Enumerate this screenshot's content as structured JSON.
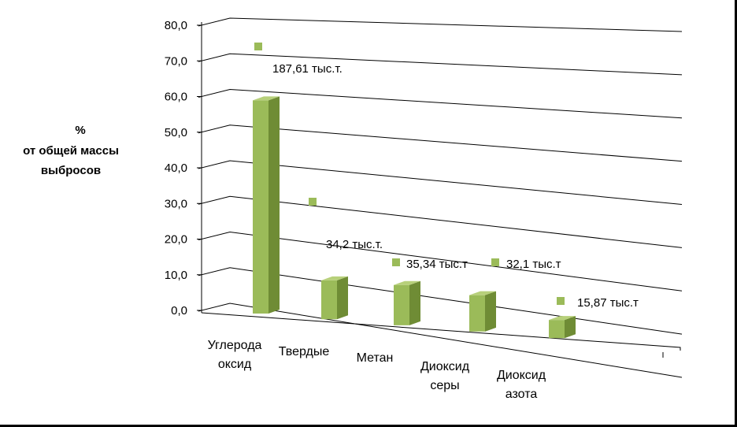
{
  "chart_data": {
    "type": "bar",
    "title": "",
    "ylabel_lines": [
      "%",
      "от общей массы",
      "выбросов"
    ],
    "xlabel": "",
    "ylim": [
      0,
      80
    ],
    "yticks": [
      "0,0",
      "10,0",
      "20,0",
      "30,0",
      "40,0",
      "50,0",
      "60,0",
      "70,0",
      "80,0"
    ],
    "categories": [
      [
        "Углерода",
        "оксид"
      ],
      [
        "Твердые"
      ],
      [
        "Метан"
      ],
      [
        "Диоксид",
        "серы"
      ],
      [
        "Диоксид",
        "азота"
      ]
    ],
    "values": [
      59.8,
      10.9,
      11.3,
      10.2,
      5.1
    ],
    "annotations": [
      "187,61 тыс.т.",
      "34,2 тыс.т.",
      "35,34 тыс.т",
      "32,1 тыс.т",
      "15,87 тыс.т"
    ],
    "grid": true,
    "legend": "none",
    "colors": {
      "bar_front": "#9bbb59",
      "bar_side": "#6f8c35",
      "bar_top": "#b7d07a",
      "marker": "#9bbb59",
      "grid": "#000000"
    }
  }
}
